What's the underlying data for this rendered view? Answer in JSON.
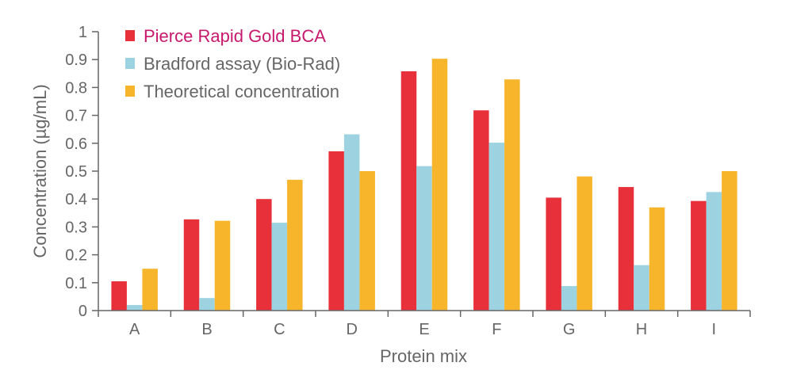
{
  "chart_data": {
    "type": "bar",
    "title": "",
    "xlabel": "Protein mix",
    "ylabel": "Concentration (µg/mL)",
    "ylim": [
      0,
      1
    ],
    "yticks": [
      "0",
      "0.1",
      "0.2",
      "0.3",
      "0.4",
      "0.5",
      "0.6",
      "0.7",
      "0.8",
      "0.9",
      "1"
    ],
    "categories": [
      "A",
      "B",
      "C",
      "D",
      "E",
      "F",
      "G",
      "H",
      "I"
    ],
    "series": [
      {
        "name": "Pierce Rapid Gold BCA",
        "color": "#e8303a",
        "label_color": "#c8186e",
        "values": [
          0.105,
          0.327,
          0.4,
          0.571,
          0.858,
          0.718,
          0.405,
          0.443,
          0.393
        ]
      },
      {
        "name": "Bradford assay (Bio-Rad)",
        "color": "#9dd3e0",
        "label_color": "#666666",
        "values": [
          0.02,
          0.045,
          0.315,
          0.632,
          0.518,
          0.602,
          0.088,
          0.163,
          0.425
        ]
      },
      {
        "name": "Theoretical concentration",
        "color": "#f7b52c",
        "label_color": "#666666",
        "values": [
          0.15,
          0.322,
          0.469,
          0.5,
          0.903,
          0.829,
          0.481,
          0.37,
          0.5
        ]
      }
    ],
    "legend_position": "top-left",
    "grid": false
  }
}
